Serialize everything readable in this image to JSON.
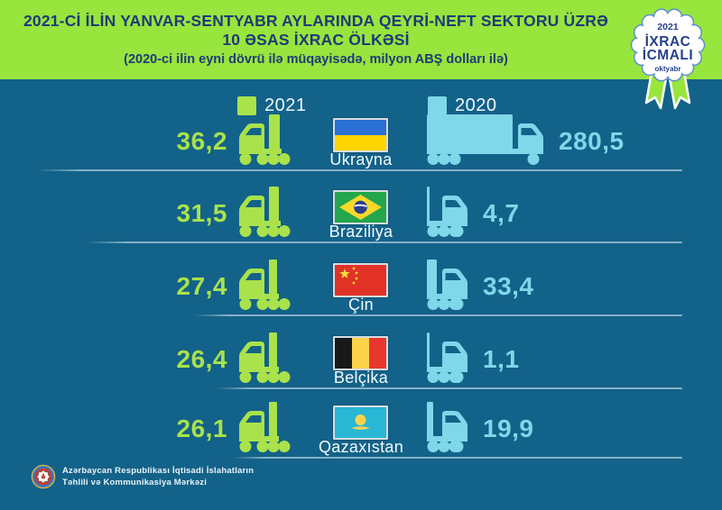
{
  "header": {
    "title_line1": "2021-Cİ İLİN YANVAR-SENTYABR AYLARINDA QEYRİ-NEFT SEKTORU ÜZRƏ",
    "title_line2": "10 ƏSAS İXRAC ÖLKƏSİ",
    "subtitle": "(2020-ci ilin eyni dövrü ilə müqayisədə, milyon ABŞ dolları ilə)",
    "badge": {
      "year": "2021",
      "line1": "İXRAC",
      "line2": "İCMALI",
      "month": "oktyabr"
    }
  },
  "legend": [
    {
      "label": "2021",
      "color": "#a9e24b"
    },
    {
      "label": "2020",
      "color": "#7fd7ea"
    }
  ],
  "chart_data": {
    "type": "bar",
    "title": "2021-ci ilin yanvar-sentyabr aylarında qeyri-neft sektoru üzrə 10 əsas ixrac ölkəsi",
    "subtitle": "2020-ci ilin eyni dövrü ilə müqayisədə, milyon ABŞ dolları ilə",
    "unit": "milyon ABŞ dolları",
    "categories": [
      "Ukrayna",
      "Braziliya",
      "Çin",
      "Belçika",
      "Qazaxıstan"
    ],
    "series": [
      {
        "name": "2021",
        "color": "#a9e24b",
        "values": [
          36.2,
          31.5,
          27.4,
          26.4,
          26.1
        ]
      },
      {
        "name": "2020",
        "color": "#7fd7ea",
        "values": [
          280.5,
          4.7,
          33.4,
          1.1,
          19.9
        ]
      }
    ],
    "value_labels_2021": [
      "36,2",
      "31,5",
      "27,4",
      "26,4",
      "26,1"
    ],
    "value_labels_2020": [
      "280,5",
      "4,7",
      "33,4",
      "1,1",
      "19,9"
    ],
    "legend_position": "top",
    "grid": false
  },
  "flags": {
    "Ukrayna": {
      "type": "ukraine",
      "colors": [
        "#2a6fd3",
        "#ffd500"
      ]
    },
    "Braziliya": {
      "type": "brazil",
      "colors": [
        "#23a64c",
        "#f8d82a",
        "#2a3f8f",
        "#ffffff"
      ]
    },
    "Çin": {
      "type": "china",
      "colors": [
        "#e23227",
        "#fbdf3a"
      ]
    },
    "Belçika": {
      "type": "belgium",
      "colors": [
        "#191919",
        "#fbd34b",
        "#e8372e"
      ]
    },
    "Qazaxıstan": {
      "type": "kazakhstan",
      "colors": [
        "#28b7d5",
        "#fbd34b"
      ]
    }
  },
  "footer": {
    "org_line1": "Azərbaycan Respublikası İqtisadi İslahatların",
    "org_line2": "Təhlili və Kommunikasiya Mərkəzi"
  },
  "colors": {
    "background": "#136289",
    "header_background": "#98e53d",
    "header_text": "#1f3a79",
    "accent_2021": "#a9e24b",
    "accent_2020": "#7fd7ea",
    "row_line": "#cfe6f0",
    "badge_outline": "#5e8fd0"
  }
}
